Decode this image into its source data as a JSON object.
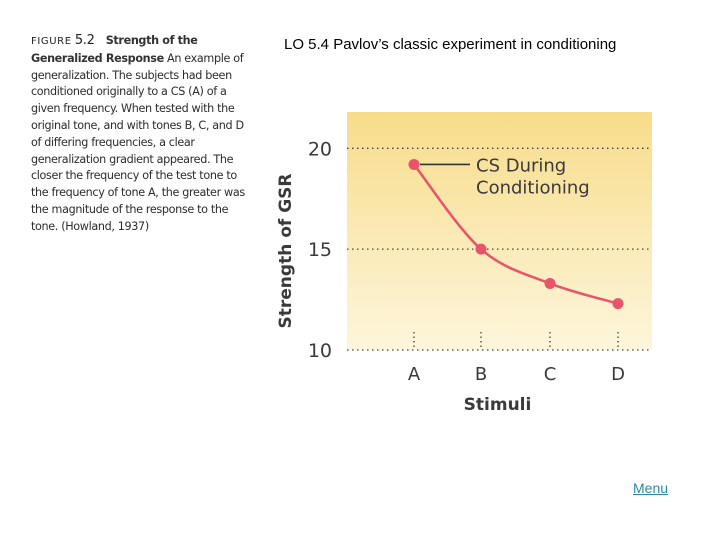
{
  "slide": {
    "title": "LO 5.4 Pavlov’s classic experiment in conditioning",
    "menu_link": "Menu"
  },
  "caption": {
    "figure_label": "FIGURE",
    "figure_number": "5.2",
    "heading": "Strength of the Generalized Response",
    "body": "An example of generalization. The subjects had been conditioned originally to a CS (A) of a given frequency. When tested with the original tone, and with tones B, C, and D of differing frequencies, a clear generalization gradient appeared. The closer the frequency of the test tone to the frequency of tone A, the greater was the magnitude of the response to the tone. (Howland, 1937)"
  },
  "colors": {
    "plot_bg_top": "#f7dc8a",
    "plot_bg_bottom": "#fdf6dc",
    "series": "#e8546a",
    "annotation_line": "#333333",
    "link": "#2a8aa8"
  },
  "chart_data": {
    "type": "line",
    "categories": [
      "A",
      "B",
      "C",
      "D"
    ],
    "series": [
      {
        "values": [
          19.2,
          15.0,
          13.3,
          12.3
        ]
      }
    ],
    "yticks": [
      10,
      15,
      20
    ],
    "ylim": [
      10,
      21.8
    ],
    "xlabel": "Stimuli",
    "ylabel": "Strength of GSR",
    "annotation": {
      "lines": [
        "CS During",
        "Conditioning"
      ],
      "points_to": "A"
    },
    "grid": "dotted horizontal at y ticks"
  }
}
